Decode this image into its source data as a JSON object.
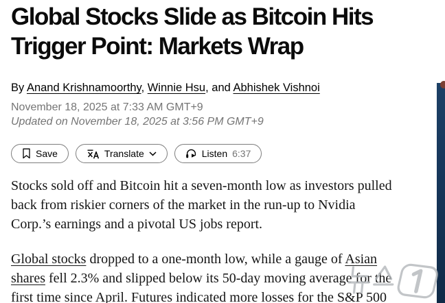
{
  "article": {
    "headline_lines": [
      "Global Stocks Slide as Bitcoin Hits",
      "Trigger Point: Markets Wrap"
    ],
    "byline": {
      "prefix": "By ",
      "author1": "Anand Krishnamoorthy",
      "sep1": ", ",
      "author2": "Winnie Hsu",
      "sep2": ", and ",
      "author3": "Abhishek Vishnoi"
    },
    "published": "November 18, 2025 at 7:33 AM GMT+9",
    "updated": "Updated on November 18, 2025 at 3:56 PM GMT+9"
  },
  "toolbar": {
    "save_label": "Save",
    "translate_label": "Translate",
    "listen_label": "Listen",
    "listen_duration": "6:37"
  },
  "body": {
    "paragraphs": [
      {
        "runs": [
          {
            "t": "Stocks sold off and Bitcoin hit a seven-month low as investors pulled"
          },
          {
            "br": true
          },
          {
            "t": "back from riskier corners of the market in the run-up to Nvidia"
          },
          {
            "br": true
          },
          {
            "t": "Corp.’s earnings and a pivotal US jobs report."
          }
        ]
      },
      {
        "runs": [
          {
            "t": "Global stocks",
            "link": true
          },
          {
            "t": " dropped to a one-month low, while a gauge of "
          },
          {
            "t": "Asian",
            "link": true
          },
          {
            "br": true
          },
          {
            "t": "shares",
            "link": true
          },
          {
            "t": " fell 2.3% and slipped below its 50-day moving average for the"
          },
          {
            "br": true
          },
          {
            "t": "first time since April. Futures indicated more losses for the S&P 500"
          }
        ]
      }
    ]
  },
  "watermark": {
    "text": "뉴스1"
  },
  "colors": {
    "side_panel_navy": "#16365a",
    "meta_gray": "#757575",
    "text_black": "#0b0b0b",
    "watermark_gray": "#b3b7bb",
    "side_dot_red": "#7a4034"
  }
}
